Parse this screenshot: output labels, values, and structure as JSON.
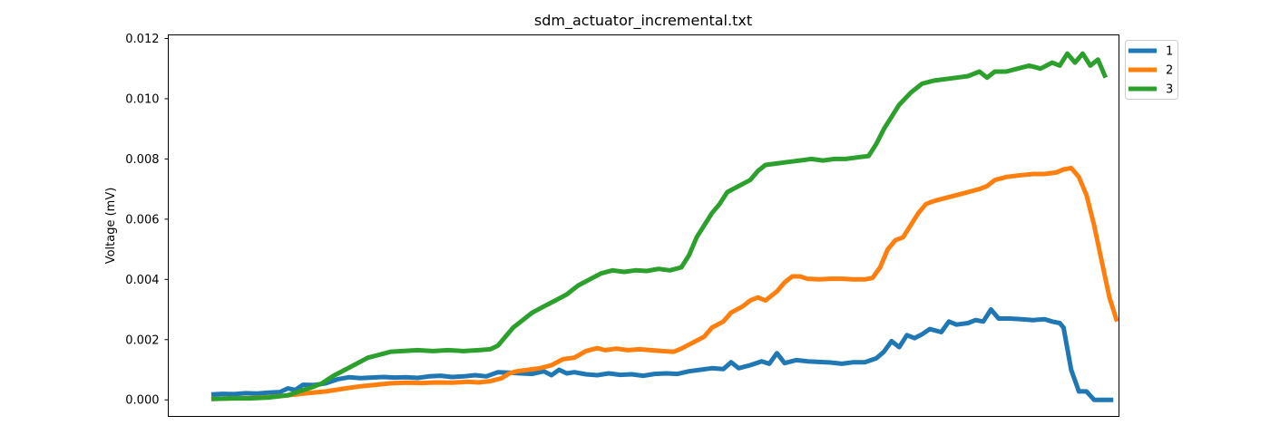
{
  "chart_data": {
    "type": "line",
    "title": "sdm_actuator_incremental.txt",
    "xlabel": "",
    "ylabel": "Voltage (mV)",
    "ylim": [
      -0.00055,
      0.01212
    ],
    "xlim": [
      -22.5,
      475
    ],
    "yticks": [
      0.0,
      0.002,
      0.004,
      0.006,
      0.008,
      0.01,
      0.012
    ],
    "ytick_labels": [
      "0.000",
      "0.002",
      "0.004",
      "0.006",
      "0.008",
      "0.010",
      "0.012"
    ],
    "xticks_shown": false,
    "grid": false,
    "legend_position": "outside-top-right",
    "series": [
      {
        "name": "1",
        "color": "#1f77b4",
        "points": [
          [
            0,
            0.00018
          ],
          [
            6,
            0.0002
          ],
          [
            12,
            0.00019
          ],
          [
            18,
            0.00022
          ],
          [
            24,
            0.00021
          ],
          [
            30,
            0.00024
          ],
          [
            36,
            0.00026
          ],
          [
            40,
            0.00038
          ],
          [
            44,
            0.00033
          ],
          [
            48,
            0.0005
          ],
          [
            54,
            0.00049
          ],
          [
            60,
            0.00055
          ],
          [
            66,
            0.00068
          ],
          [
            72,
            0.00075
          ],
          [
            78,
            0.00072
          ],
          [
            84,
            0.00074
          ],
          [
            90,
            0.00076
          ],
          [
            96,
            0.00074
          ],
          [
            102,
            0.00075
          ],
          [
            108,
            0.00073
          ],
          [
            114,
            0.00078
          ],
          [
            120,
            0.0008
          ],
          [
            126,
            0.00076
          ],
          [
            132,
            0.00078
          ],
          [
            138,
            0.00082
          ],
          [
            144,
            0.00078
          ],
          [
            150,
            0.00092
          ],
          [
            156,
            0.0009
          ],
          [
            162,
            0.00088
          ],
          [
            168,
            0.00086
          ],
          [
            174,
            0.00095
          ],
          [
            178,
            0.00082
          ],
          [
            182,
            0.001
          ],
          [
            186,
            0.00088
          ],
          [
            190,
            0.00092
          ],
          [
            196,
            0.00085
          ],
          [
            202,
            0.00082
          ],
          [
            208,
            0.00088
          ],
          [
            214,
            0.00083
          ],
          [
            220,
            0.00085
          ],
          [
            226,
            0.0008
          ],
          [
            232,
            0.00086
          ],
          [
            238,
            0.00088
          ],
          [
            244,
            0.00086
          ],
          [
            250,
            0.00095
          ],
          [
            256,
            0.001
          ],
          [
            262,
            0.00105
          ],
          [
            268,
            0.00102
          ],
          [
            272,
            0.00125
          ],
          [
            276,
            0.00105
          ],
          [
            282,
            0.00115
          ],
          [
            288,
            0.00128
          ],
          [
            292,
            0.0012
          ],
          [
            296,
            0.00155
          ],
          [
            300,
            0.00122
          ],
          [
            306,
            0.00132
          ],
          [
            312,
            0.00128
          ],
          [
            318,
            0.00126
          ],
          [
            324,
            0.00124
          ],
          [
            330,
            0.0012
          ],
          [
            336,
            0.00125
          ],
          [
            342,
            0.00125
          ],
          [
            348,
            0.00138
          ],
          [
            352,
            0.0016
          ],
          [
            356,
            0.00195
          ],
          [
            360,
            0.00175
          ],
          [
            364,
            0.00215
          ],
          [
            368,
            0.00205
          ],
          [
            372,
            0.00218
          ],
          [
            376,
            0.00235
          ],
          [
            382,
            0.00225
          ],
          [
            386,
            0.0026
          ],
          [
            390,
            0.0025
          ],
          [
            396,
            0.00255
          ],
          [
            400,
            0.00265
          ],
          [
            404,
            0.0026
          ],
          [
            408,
            0.003
          ],
          [
            412,
            0.0027
          ],
          [
            418,
            0.0027
          ],
          [
            424,
            0.00268
          ],
          [
            430,
            0.00265
          ],
          [
            436,
            0.00268
          ],
          [
            440,
            0.0026
          ],
          [
            444,
            0.00255
          ],
          [
            446,
            0.0024
          ],
          [
            450,
            0.001
          ],
          [
            454,
            0.00028
          ],
          [
            458,
            0.00028
          ],
          [
            462,
            0.0
          ],
          [
            466,
            0.0
          ],
          [
            472,
            0.0
          ]
        ]
      },
      {
        "name": "2",
        "color": "#ff7f0e",
        "points": [
          [
            0,
            3e-05
          ],
          [
            10,
            5e-05
          ],
          [
            20,
            6e-05
          ],
          [
            30,
            9e-05
          ],
          [
            40,
            0.00015
          ],
          [
            50,
            0.00022
          ],
          [
            60,
            0.00028
          ],
          [
            70,
            0.00038
          ],
          [
            78,
            0.00045
          ],
          [
            86,
            0.0005
          ],
          [
            94,
            0.00055
          ],
          [
            102,
            0.00057
          ],
          [
            110,
            0.00056
          ],
          [
            118,
            0.00058
          ],
          [
            126,
            0.00057
          ],
          [
            134,
            0.0006
          ],
          [
            140,
            0.00058
          ],
          [
            146,
            0.00062
          ],
          [
            152,
            0.00072
          ],
          [
            156,
            0.00088
          ],
          [
            160,
            0.00095
          ],
          [
            166,
            0.001
          ],
          [
            172,
            0.00105
          ],
          [
            178,
            0.00115
          ],
          [
            184,
            0.00135
          ],
          [
            190,
            0.0014
          ],
          [
            196,
            0.00162
          ],
          [
            202,
            0.00172
          ],
          [
            206,
            0.00165
          ],
          [
            212,
            0.0017
          ],
          [
            218,
            0.00165
          ],
          [
            224,
            0.00168
          ],
          [
            230,
            0.00165
          ],
          [
            236,
            0.00162
          ],
          [
            242,
            0.0016
          ],
          [
            246,
            0.0017
          ],
          [
            252,
            0.0019
          ],
          [
            258,
            0.0021
          ],
          [
            262,
            0.0024
          ],
          [
            268,
            0.0026
          ],
          [
            272,
            0.0029
          ],
          [
            278,
            0.0031
          ],
          [
            282,
            0.0033
          ],
          [
            286,
            0.0034
          ],
          [
            290,
            0.0033
          ],
          [
            296,
            0.0036
          ],
          [
            300,
            0.0039
          ],
          [
            304,
            0.0041
          ],
          [
            308,
            0.0041
          ],
          [
            312,
            0.00402
          ],
          [
            318,
            0.004
          ],
          [
            324,
            0.00402
          ],
          [
            330,
            0.00402
          ],
          [
            336,
            0.004
          ],
          [
            342,
            0.004
          ],
          [
            346,
            0.00405
          ],
          [
            350,
            0.0044
          ],
          [
            354,
            0.005
          ],
          [
            358,
            0.0053
          ],
          [
            362,
            0.0054
          ],
          [
            366,
            0.0058
          ],
          [
            370,
            0.0062
          ],
          [
            374,
            0.0065
          ],
          [
            378,
            0.0066
          ],
          [
            384,
            0.0067
          ],
          [
            390,
            0.0068
          ],
          [
            396,
            0.0069
          ],
          [
            402,
            0.007
          ],
          [
            406,
            0.0071
          ],
          [
            410,
            0.0073
          ],
          [
            416,
            0.0074
          ],
          [
            422,
            0.00745
          ],
          [
            430,
            0.0075
          ],
          [
            436,
            0.0075
          ],
          [
            442,
            0.00755
          ],
          [
            446,
            0.00765
          ],
          [
            450,
            0.0077
          ],
          [
            454,
            0.0074
          ],
          [
            458,
            0.0068
          ],
          [
            462,
            0.0058
          ],
          [
            466,
            0.0046
          ],
          [
            470,
            0.0034
          ],
          [
            474,
            0.0026
          ]
        ]
      },
      {
        "name": "3",
        "color": "#2ca02c",
        "points": [
          [
            0,
            3e-05
          ],
          [
            10,
            5e-05
          ],
          [
            20,
            5e-05
          ],
          [
            30,
            8e-05
          ],
          [
            40,
            0.00015
          ],
          [
            46,
            0.00028
          ],
          [
            52,
            0.0004
          ],
          [
            58,
            0.00055
          ],
          [
            64,
            0.0008
          ],
          [
            70,
            0.001
          ],
          [
            76,
            0.0012
          ],
          [
            82,
            0.0014
          ],
          [
            88,
            0.0015
          ],
          [
            94,
            0.0016
          ],
          [
            100,
            0.00162
          ],
          [
            108,
            0.00165
          ],
          [
            116,
            0.00162
          ],
          [
            124,
            0.00165
          ],
          [
            132,
            0.00162
          ],
          [
            140,
            0.00165
          ],
          [
            146,
            0.00168
          ],
          [
            150,
            0.0018
          ],
          [
            154,
            0.0021
          ],
          [
            158,
            0.0024
          ],
          [
            162,
            0.0026
          ],
          [
            168,
            0.0029
          ],
          [
            174,
            0.0031
          ],
          [
            180,
            0.0033
          ],
          [
            186,
            0.0035
          ],
          [
            192,
            0.0038
          ],
          [
            198,
            0.004
          ],
          [
            204,
            0.0042
          ],
          [
            210,
            0.0043
          ],
          [
            216,
            0.00425
          ],
          [
            222,
            0.0043
          ],
          [
            228,
            0.00428
          ],
          [
            234,
            0.00435
          ],
          [
            240,
            0.0043
          ],
          [
            246,
            0.0044
          ],
          [
            250,
            0.0048
          ],
          [
            254,
            0.0054
          ],
          [
            258,
            0.0058
          ],
          [
            262,
            0.0062
          ],
          [
            266,
            0.0065
          ],
          [
            270,
            0.0069
          ],
          [
            276,
            0.0071
          ],
          [
            282,
            0.0073
          ],
          [
            286,
            0.0076
          ],
          [
            290,
            0.0078
          ],
          [
            296,
            0.00785
          ],
          [
            302,
            0.0079
          ],
          [
            308,
            0.00795
          ],
          [
            314,
            0.008
          ],
          [
            320,
            0.00795
          ],
          [
            326,
            0.008
          ],
          [
            332,
            0.008
          ],
          [
            338,
            0.00805
          ],
          [
            344,
            0.0081
          ],
          [
            348,
            0.0085
          ],
          [
            352,
            0.009
          ],
          [
            356,
            0.0094
          ],
          [
            360,
            0.0098
          ],
          [
            366,
            0.0102
          ],
          [
            372,
            0.0105
          ],
          [
            378,
            0.0106
          ],
          [
            384,
            0.01065
          ],
          [
            390,
            0.0107
          ],
          [
            396,
            0.01075
          ],
          [
            402,
            0.0109
          ],
          [
            406,
            0.0107
          ],
          [
            410,
            0.0109
          ],
          [
            416,
            0.0109
          ],
          [
            422,
            0.011
          ],
          [
            428,
            0.0111
          ],
          [
            434,
            0.011
          ],
          [
            440,
            0.0112
          ],
          [
            444,
            0.0111
          ],
          [
            448,
            0.0115
          ],
          [
            452,
            0.0112
          ],
          [
            456,
            0.0115
          ],
          [
            460,
            0.0111
          ],
          [
            464,
            0.0113
          ],
          [
            468,
            0.0107
          ]
        ]
      }
    ]
  }
}
